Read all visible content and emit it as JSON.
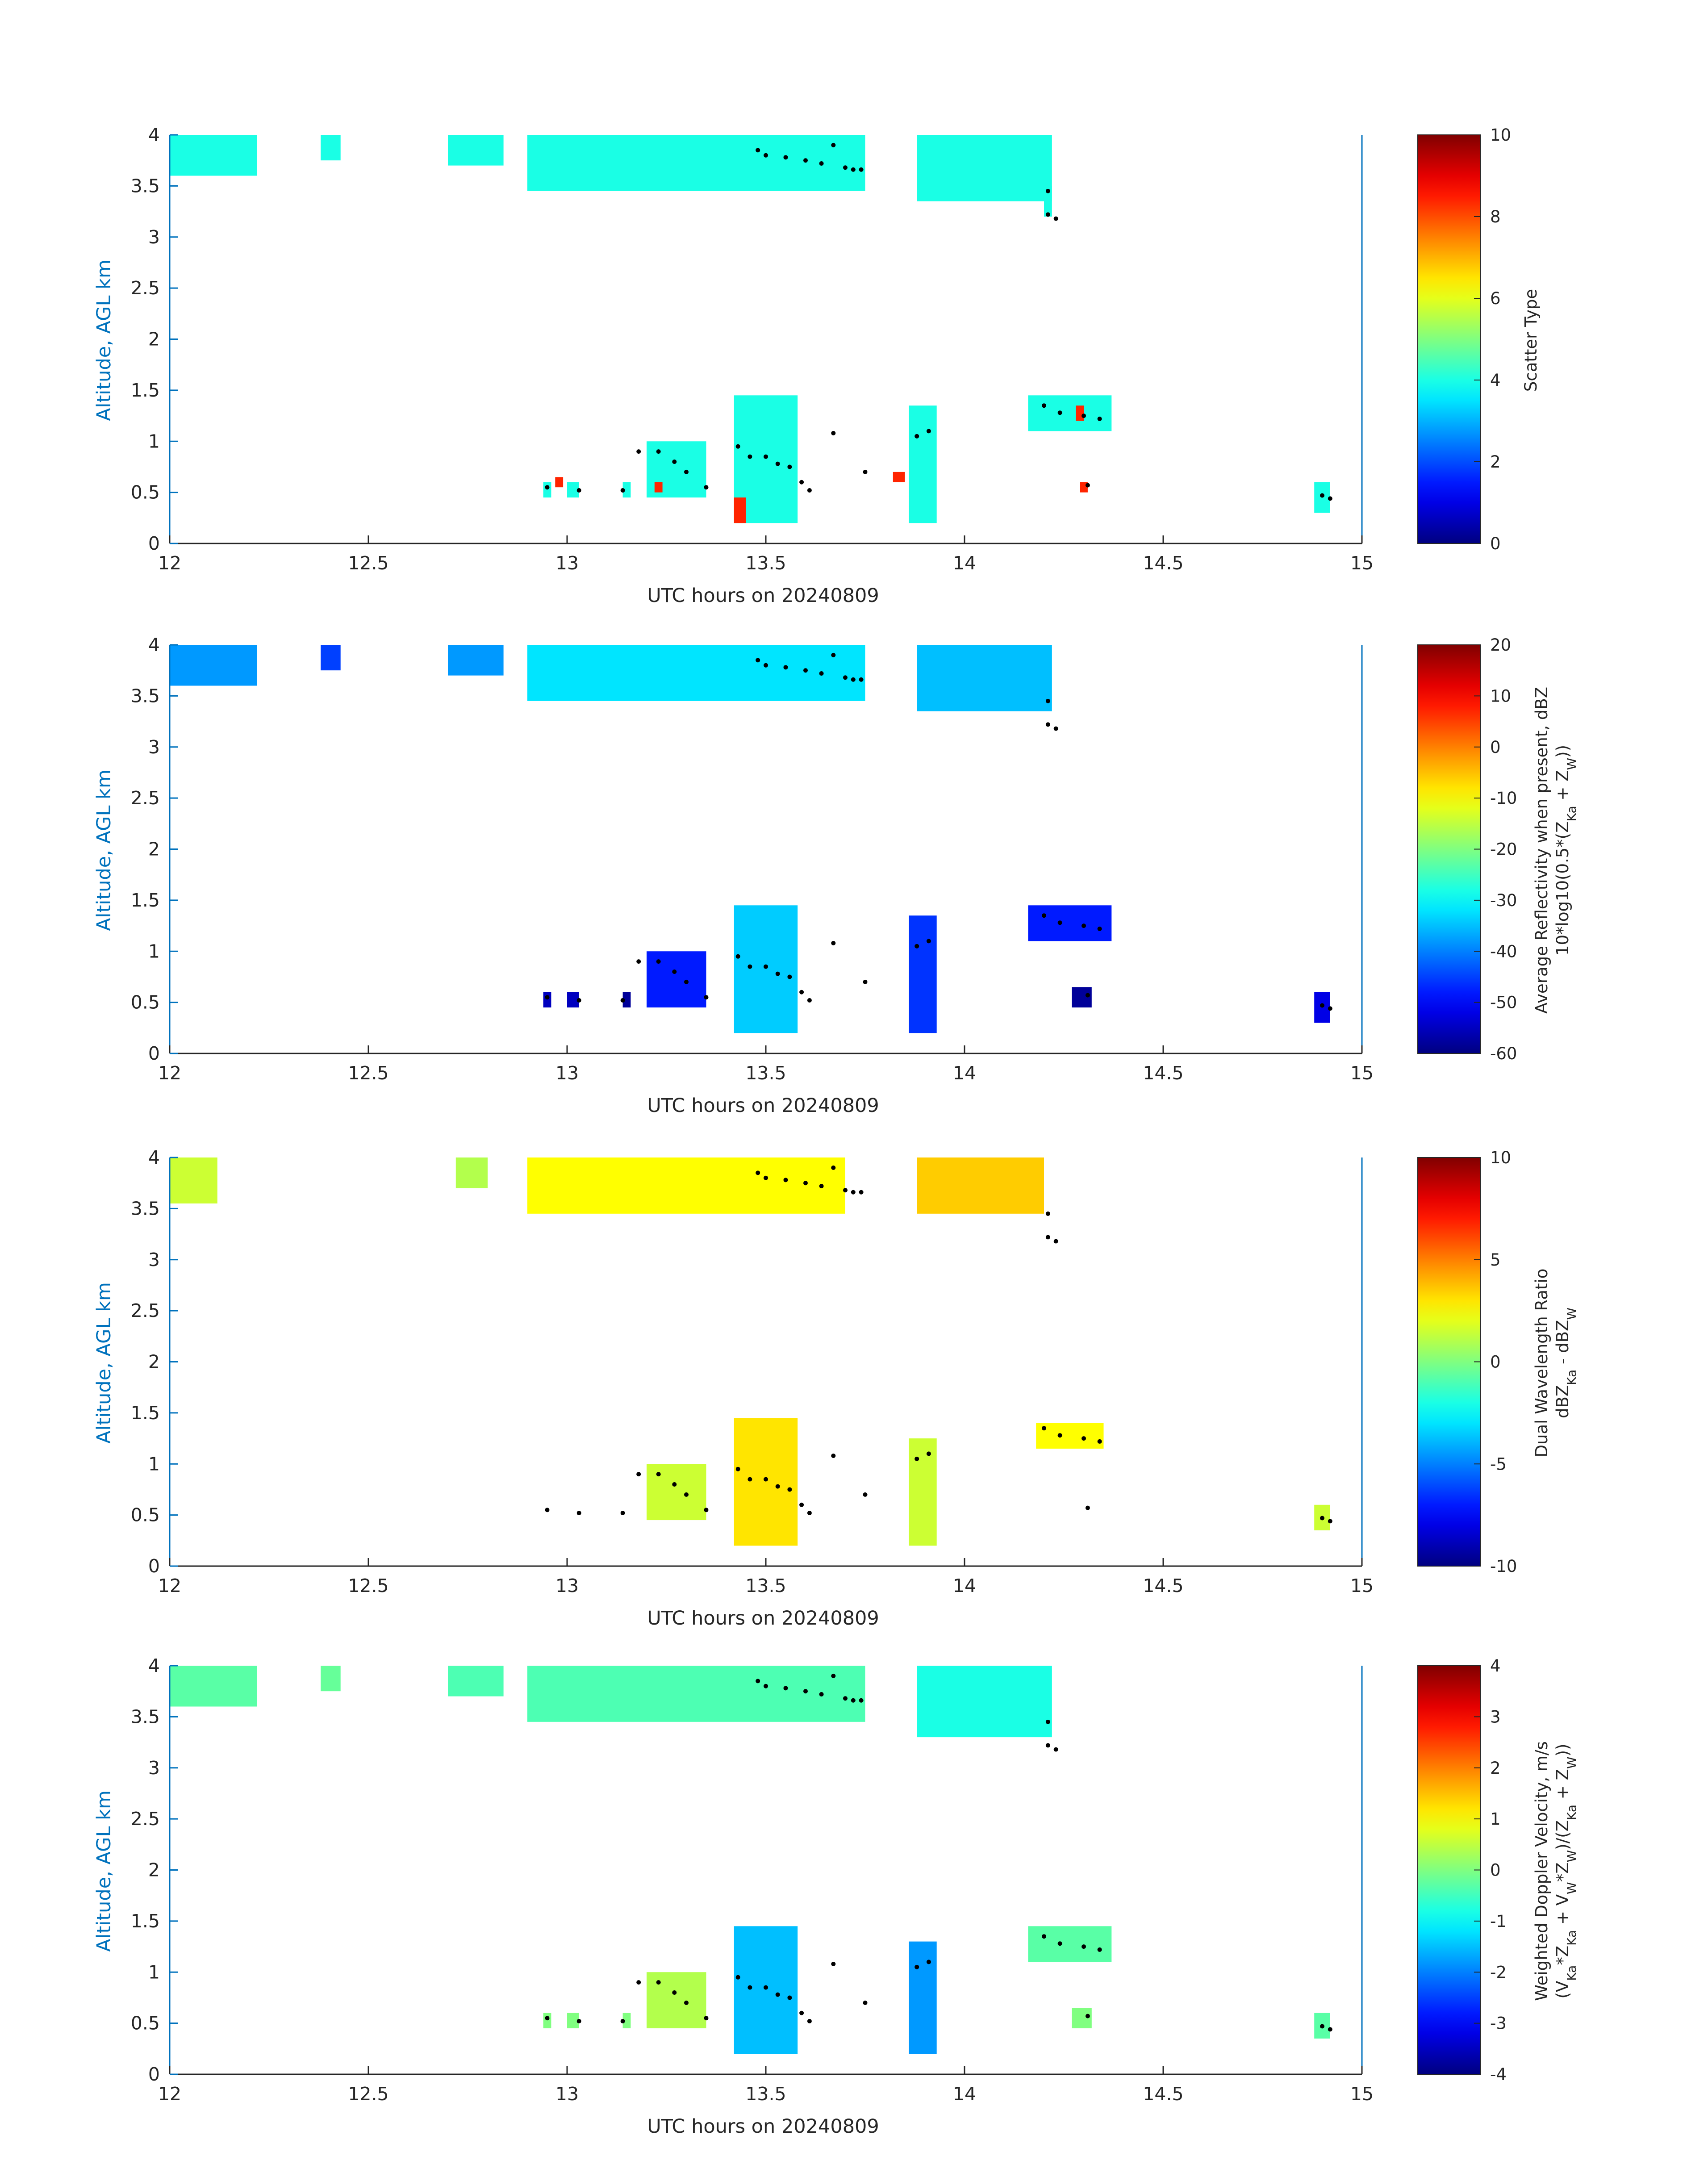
{
  "chart_data": [
    {
      "type": "heatmap",
      "xlabel": "UTC hours on 20240809",
      "ylabel": "Altitude, AGL km",
      "xlim": [
        12,
        15
      ],
      "ylim": [
        0,
        4
      ],
      "xticks": [
        "12",
        "12.5",
        "13",
        "13.5",
        "14",
        "14.5",
        "15"
      ],
      "yticks": [
        "0",
        "0.5",
        "1",
        "1.5",
        "2",
        "2.5",
        "3",
        "3.5",
        "4"
      ],
      "colorbar": {
        "label": "Scatter Type",
        "sublabel": "",
        "min": 0,
        "max": 10,
        "ticks": [
          "0",
          "2",
          "4",
          "6",
          "8",
          "10"
        ]
      },
      "colormap": "jet",
      "regions": [
        {
          "x": [
            12.0,
            12.22
          ],
          "y": [
            3.6,
            4.0
          ],
          "value": 4.0
        },
        {
          "x": [
            12.38,
            12.43
          ],
          "y": [
            3.75,
            4.0
          ],
          "value": 4.0
        },
        {
          "x": [
            12.7,
            12.84
          ],
          "y": [
            3.7,
            4.0
          ],
          "value": 4.0
        },
        {
          "x": [
            12.9,
            13.75
          ],
          "y": [
            3.45,
            4.0
          ],
          "value": 4.0
        },
        {
          "x": [
            13.88,
            14.22
          ],
          "y": [
            3.35,
            4.0
          ],
          "value": 4.0
        },
        {
          "x": [
            14.2,
            14.22
          ],
          "y": [
            3.2,
            3.5
          ],
          "value": 4.0
        },
        {
          "x": [
            13.2,
            13.35
          ],
          "y": [
            0.45,
            1.0
          ],
          "value": 4.0
        },
        {
          "x": [
            13.42,
            13.58
          ],
          "y": [
            0.2,
            1.45
          ],
          "value": 4.0
        },
        {
          "x": [
            13.86,
            13.93
          ],
          "y": [
            0.2,
            1.35
          ],
          "value": 4.0
        },
        {
          "x": [
            14.16,
            14.37
          ],
          "y": [
            1.1,
            1.45
          ],
          "value": 4.0
        },
        {
          "x": [
            12.94,
            12.96
          ],
          "y": [
            0.45,
            0.6
          ],
          "value": 4.0
        },
        {
          "x": [
            13.0,
            13.03
          ],
          "y": [
            0.45,
            0.6
          ],
          "value": 4.0
        },
        {
          "x": [
            13.14,
            13.16
          ],
          "y": [
            0.45,
            0.6
          ],
          "value": 4.0
        },
        {
          "x": [
            14.88,
            14.92
          ],
          "y": [
            0.3,
            0.6
          ],
          "value": 4.0
        },
        {
          "x": [
            13.42,
            13.45
          ],
          "y": [
            0.2,
            0.45
          ],
          "value": 8.4
        },
        {
          "x": [
            13.22,
            13.24
          ],
          "y": [
            0.5,
            0.6
          ],
          "value": 8.4
        },
        {
          "x": [
            12.97,
            12.99
          ],
          "y": [
            0.55,
            0.65
          ],
          "value": 8.4
        },
        {
          "x": [
            13.82,
            13.85
          ],
          "y": [
            0.6,
            0.7
          ],
          "value": 8.4
        },
        {
          "x": [
            14.28,
            14.3
          ],
          "y": [
            1.2,
            1.35
          ],
          "value": 8.4
        },
        {
          "x": [
            14.29,
            14.31
          ],
          "y": [
            0.5,
            0.6
          ],
          "value": 8.4
        }
      ]
    },
    {
      "type": "heatmap",
      "xlabel": "UTC hours on 20240809",
      "ylabel": "Altitude, AGL km",
      "xlim": [
        12,
        15
      ],
      "ylim": [
        0,
        4
      ],
      "xticks": [
        "12",
        "12.5",
        "13",
        "13.5",
        "14",
        "14.5",
        "15"
      ],
      "yticks": [
        "0",
        "0.5",
        "1",
        "1.5",
        "2",
        "2.5",
        "3",
        "3.5",
        "4"
      ],
      "colorbar": {
        "label": "Average Reflectivity when present, dBZ",
        "sublabel": "10*log10(0.5*(Z",
        "min": -60,
        "max": 20,
        "ticks": [
          "-60",
          "-50",
          "-40",
          "-30",
          "-20",
          "-10",
          "0",
          "10",
          "20"
        ]
      },
      "colormap": "jet",
      "regions": [
        {
          "x": [
            12.0,
            12.22
          ],
          "y": [
            3.6,
            4.0
          ],
          "value": -38
        },
        {
          "x": [
            12.38,
            12.43
          ],
          "y": [
            3.75,
            4.0
          ],
          "value": -45
        },
        {
          "x": [
            12.7,
            12.84
          ],
          "y": [
            3.7,
            4.0
          ],
          "value": -38
        },
        {
          "x": [
            12.9,
            13.75
          ],
          "y": [
            3.45,
            4.0
          ],
          "value": -32
        },
        {
          "x": [
            13.88,
            14.22
          ],
          "y": [
            3.35,
            4.0
          ],
          "value": -35
        },
        {
          "x": [
            13.2,
            13.35
          ],
          "y": [
            0.45,
            1.0
          ],
          "value": -48
        },
        {
          "x": [
            13.42,
            13.58
          ],
          "y": [
            0.2,
            1.45
          ],
          "value": -34
        },
        {
          "x": [
            13.86,
            13.93
          ],
          "y": [
            0.2,
            1.35
          ],
          "value": -46
        },
        {
          "x": [
            14.16,
            14.37
          ],
          "y": [
            1.1,
            1.45
          ],
          "value": -48
        },
        {
          "x": [
            14.27,
            14.32
          ],
          "y": [
            0.45,
            0.65
          ],
          "value": -58
        },
        {
          "x": [
            12.94,
            12.96
          ],
          "y": [
            0.45,
            0.6
          ],
          "value": -55
        },
        {
          "x": [
            13.0,
            13.03
          ],
          "y": [
            0.45,
            0.6
          ],
          "value": -55
        },
        {
          "x": [
            13.14,
            13.16
          ],
          "y": [
            0.45,
            0.6
          ],
          "value": -58
        },
        {
          "x": [
            14.88,
            14.92
          ],
          "y": [
            0.3,
            0.6
          ],
          "value": -52
        }
      ]
    },
    {
      "type": "heatmap",
      "xlabel": "UTC hours on 20240809",
      "ylabel": "Altitude, AGL km",
      "xlim": [
        12,
        15
      ],
      "ylim": [
        0,
        4
      ],
      "xticks": [
        "12",
        "12.5",
        "13",
        "13.5",
        "14",
        "14.5",
        "15"
      ],
      "yticks": [
        "0",
        "0.5",
        "1",
        "1.5",
        "2",
        "2.5",
        "3",
        "3.5",
        "4"
      ],
      "colorbar": {
        "label": "Dual Wavelength Ratio",
        "sublabel": "dBZ",
        "min": -10,
        "max": 10,
        "ticks": [
          "-10",
          "-5",
          "0",
          "5",
          "10"
        ]
      },
      "colormap": "jet",
      "regions": [
        {
          "x": [
            12.0,
            12.12
          ],
          "y": [
            3.55,
            4.0
          ],
          "value": 1.5
        },
        {
          "x": [
            12.72,
            12.8
          ],
          "y": [
            3.7,
            4.0
          ],
          "value": 1.0
        },
        {
          "x": [
            12.9,
            13.7
          ],
          "y": [
            3.45,
            4.0
          ],
          "value": 2.5
        },
        {
          "x": [
            13.88,
            14.2
          ],
          "y": [
            3.45,
            4.0
          ],
          "value": 3.5
        },
        {
          "x": [
            13.2,
            13.35
          ],
          "y": [
            0.45,
            1.0
          ],
          "value": 1.5
        },
        {
          "x": [
            13.42,
            13.58
          ],
          "y": [
            0.2,
            1.45
          ],
          "value": 3.0
        },
        {
          "x": [
            13.86,
            13.93
          ],
          "y": [
            0.2,
            1.25
          ],
          "value": 1.5
        },
        {
          "x": [
            14.18,
            14.35
          ],
          "y": [
            1.15,
            1.4
          ],
          "value": 2.5
        },
        {
          "x": [
            14.88,
            14.92
          ],
          "y": [
            0.35,
            0.6
          ],
          "value": 1.5
        }
      ]
    },
    {
      "type": "heatmap",
      "xlabel": "UTC hours on 20240809",
      "ylabel": "Altitude, AGL km",
      "xlim": [
        12,
        15
      ],
      "ylim": [
        0,
        4
      ],
      "xticks": [
        "12",
        "12.5",
        "13",
        "13.5",
        "14",
        "14.5",
        "15"
      ],
      "yticks": [
        "0",
        "0.5",
        "1",
        "1.5",
        "2",
        "2.5",
        "3",
        "3.5",
        "4"
      ],
      "colorbar": {
        "label": "Weighted Doppler Velocity, m/s",
        "sublabel": "(V",
        "min": -4,
        "max": 4,
        "ticks": [
          "-4",
          "-3",
          "-2",
          "-1",
          "0",
          "1",
          "2",
          "3",
          "4"
        ]
      },
      "colormap": "jet",
      "regions": [
        {
          "x": [
            12.0,
            12.22
          ],
          "y": [
            3.6,
            4.0
          ],
          "value": -0.3
        },
        {
          "x": [
            12.38,
            12.43
          ],
          "y": [
            3.75,
            4.0
          ],
          "value": -0.2
        },
        {
          "x": [
            12.7,
            12.84
          ],
          "y": [
            3.7,
            4.0
          ],
          "value": -0.4
        },
        {
          "x": [
            12.9,
            13.75
          ],
          "y": [
            3.45,
            4.0
          ],
          "value": -0.4
        },
        {
          "x": [
            13.88,
            14.22
          ],
          "y": [
            3.3,
            4.0
          ],
          "value": -0.8
        },
        {
          "x": [
            13.2,
            13.35
          ],
          "y": [
            0.45,
            1.0
          ],
          "value": 0.4
        },
        {
          "x": [
            13.42,
            13.58
          ],
          "y": [
            0.2,
            1.45
          ],
          "value": -1.5
        },
        {
          "x": [
            13.86,
            13.93
          ],
          "y": [
            0.2,
            1.3
          ],
          "value": -1.8
        },
        {
          "x": [
            14.16,
            14.37
          ],
          "y": [
            1.1,
            1.45
          ],
          "value": -0.3
        },
        {
          "x": [
            12.94,
            12.96
          ],
          "y": [
            0.45,
            0.6
          ],
          "value": 0.0
        },
        {
          "x": [
            13.0,
            13.03
          ],
          "y": [
            0.45,
            0.6
          ],
          "value": 0.0
        },
        {
          "x": [
            13.14,
            13.16
          ],
          "y": [
            0.45,
            0.6
          ],
          "value": 0.0
        },
        {
          "x": [
            14.27,
            14.32
          ],
          "y": [
            0.45,
            0.65
          ],
          "value": 0.0
        },
        {
          "x": [
            14.88,
            14.92
          ],
          "y": [
            0.35,
            0.6
          ],
          "value": -0.3
        }
      ]
    }
  ],
  "overlay_points": [
    {
      "x": 13.48,
      "y": 3.85
    },
    {
      "x": 13.5,
      "y": 3.8
    },
    {
      "x": 13.55,
      "y": 3.78
    },
    {
      "x": 13.6,
      "y": 3.75
    },
    {
      "x": 13.64,
      "y": 3.72
    },
    {
      "x": 13.67,
      "y": 3.9
    },
    {
      "x": 13.7,
      "y": 3.68
    },
    {
      "x": 13.72,
      "y": 3.66
    },
    {
      "x": 13.74,
      "y": 3.66
    },
    {
      "x": 14.21,
      "y": 3.45
    },
    {
      "x": 14.21,
      "y": 3.22
    },
    {
      "x": 14.23,
      "y": 3.18
    },
    {
      "x": 13.18,
      "y": 0.9
    },
    {
      "x": 13.23,
      "y": 0.9
    },
    {
      "x": 13.27,
      "y": 0.8
    },
    {
      "x": 13.3,
      "y": 0.7
    },
    {
      "x": 13.35,
      "y": 0.55
    },
    {
      "x": 13.43,
      "y": 0.95
    },
    {
      "x": 13.46,
      "y": 0.85
    },
    {
      "x": 13.5,
      "y": 0.85
    },
    {
      "x": 13.53,
      "y": 0.78
    },
    {
      "x": 13.56,
      "y": 0.75
    },
    {
      "x": 13.59,
      "y": 0.6
    },
    {
      "x": 13.61,
      "y": 0.52
    },
    {
      "x": 13.67,
      "y": 1.08
    },
    {
      "x": 13.75,
      "y": 0.7
    },
    {
      "x": 13.88,
      "y": 1.05
    },
    {
      "x": 13.91,
      "y": 1.1
    },
    {
      "x": 12.95,
      "y": 0.55
    },
    {
      "x": 13.03,
      "y": 0.52
    },
    {
      "x": 13.14,
      "y": 0.52
    },
    {
      "x": 14.2,
      "y": 1.35
    },
    {
      "x": 14.24,
      "y": 1.28
    },
    {
      "x": 14.3,
      "y": 1.25
    },
    {
      "x": 14.34,
      "y": 1.22
    },
    {
      "x": 14.31,
      "y": 0.57
    },
    {
      "x": 14.9,
      "y": 0.47
    },
    {
      "x": 14.92,
      "y": 0.44
    }
  ],
  "colors": {
    "axis": "#0072BD",
    "text": "#262626",
    "points": "#000000"
  }
}
